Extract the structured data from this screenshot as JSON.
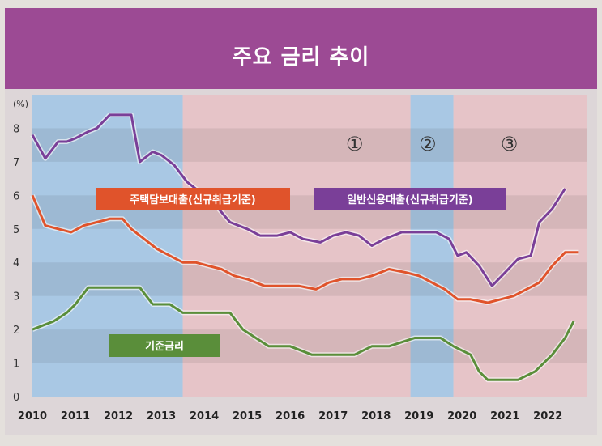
{
  "chart_data": {
    "type": "line",
    "title": "주요 금리 추이",
    "ylabel": "(%)",
    "xlabel": "",
    "ylim": [
      0,
      9
    ],
    "yticks": [
      0,
      1,
      2,
      3,
      4,
      5,
      6,
      7,
      8
    ],
    "xlim": [
      2010,
      2022.9
    ],
    "xticks": [
      "2010",
      "2011",
      "2012",
      "2013",
      "2014",
      "2015",
      "2016",
      "2017",
      "2018",
      "2019",
      "2020",
      "2021",
      "2022"
    ],
    "period_labels": [
      {
        "label": "①",
        "center": 2017.5
      },
      {
        "label": "②",
        "center": 2019.2
      },
      {
        "label": "③",
        "center": 2021.1
      }
    ],
    "shaded_periods": [
      {
        "start": 2010,
        "end": 2013.5,
        "color": "#a9c8e4"
      },
      {
        "start": 2013.5,
        "end": 2018.8,
        "color": "#e6c4c8"
      },
      {
        "start": 2018.8,
        "end": 2019.8,
        "color": "#a9c8e4"
      },
      {
        "start": 2019.8,
        "end": 2022.9,
        "color": "#e6c4c8"
      }
    ],
    "series": [
      {
        "name": "일반신용대출(신규취급기준)",
        "color": "#7a3f98",
        "points": [
          [
            2010.0,
            7.8
          ],
          [
            2010.3,
            7.1
          ],
          [
            2010.6,
            7.6
          ],
          [
            2010.8,
            7.6
          ],
          [
            2011.0,
            7.7
          ],
          [
            2011.3,
            7.9
          ],
          [
            2011.5,
            8.0
          ],
          [
            2011.8,
            8.4
          ],
          [
            2012.0,
            8.4
          ],
          [
            2012.3,
            8.4
          ],
          [
            2012.5,
            7.0
          ],
          [
            2012.8,
            7.3
          ],
          [
            2013.0,
            7.2
          ],
          [
            2013.3,
            6.9
          ],
          [
            2013.6,
            6.4
          ],
          [
            2013.9,
            6.1
          ],
          [
            2014.2,
            5.8
          ],
          [
            2014.6,
            5.2
          ],
          [
            2015.0,
            5.0
          ],
          [
            2015.3,
            4.8
          ],
          [
            2015.7,
            4.8
          ],
          [
            2016.0,
            4.9
          ],
          [
            2016.3,
            4.7
          ],
          [
            2016.7,
            4.6
          ],
          [
            2017.0,
            4.8
          ],
          [
            2017.3,
            4.9
          ],
          [
            2017.6,
            4.8
          ],
          [
            2017.9,
            4.5
          ],
          [
            2018.2,
            4.7
          ],
          [
            2018.6,
            4.9
          ],
          [
            2018.9,
            4.9
          ],
          [
            2019.1,
            4.9
          ],
          [
            2019.4,
            4.9
          ],
          [
            2019.7,
            4.7
          ],
          [
            2019.9,
            4.2
          ],
          [
            2020.1,
            4.3
          ],
          [
            2020.4,
            3.9
          ],
          [
            2020.7,
            3.3
          ],
          [
            2021.0,
            3.7
          ],
          [
            2021.3,
            4.1
          ],
          [
            2021.6,
            4.2
          ],
          [
            2021.8,
            5.2
          ],
          [
            2022.1,
            5.6
          ],
          [
            2022.4,
            6.2
          ]
        ]
      },
      {
        "name": "주택담보대출(신규취급기준)",
        "color": "#e0532b",
        "points": [
          [
            2010.0,
            6.0
          ],
          [
            2010.3,
            5.1
          ],
          [
            2010.6,
            5.0
          ],
          [
            2010.9,
            4.9
          ],
          [
            2011.2,
            5.1
          ],
          [
            2011.5,
            5.2
          ],
          [
            2011.8,
            5.3
          ],
          [
            2012.1,
            5.3
          ],
          [
            2012.3,
            5.0
          ],
          [
            2012.6,
            4.7
          ],
          [
            2012.9,
            4.4
          ],
          [
            2013.2,
            4.2
          ],
          [
            2013.5,
            4.0
          ],
          [
            2013.8,
            4.0
          ],
          [
            2014.1,
            3.9
          ],
          [
            2014.4,
            3.8
          ],
          [
            2014.7,
            3.6
          ],
          [
            2015.0,
            3.5
          ],
          [
            2015.4,
            3.3
          ],
          [
            2015.8,
            3.3
          ],
          [
            2016.2,
            3.3
          ],
          [
            2016.6,
            3.2
          ],
          [
            2016.9,
            3.4
          ],
          [
            2017.2,
            3.5
          ],
          [
            2017.6,
            3.5
          ],
          [
            2017.9,
            3.6
          ],
          [
            2018.3,
            3.8
          ],
          [
            2018.7,
            3.7
          ],
          [
            2019.0,
            3.6
          ],
          [
            2019.3,
            3.4
          ],
          [
            2019.6,
            3.2
          ],
          [
            2019.9,
            2.9
          ],
          [
            2020.2,
            2.9
          ],
          [
            2020.6,
            2.8
          ],
          [
            2020.9,
            2.9
          ],
          [
            2021.2,
            3.0
          ],
          [
            2021.5,
            3.2
          ],
          [
            2021.8,
            3.4
          ],
          [
            2022.1,
            3.9
          ],
          [
            2022.4,
            4.3
          ],
          [
            2022.7,
            4.3
          ]
        ]
      },
      {
        "name": "기준금리",
        "color": "#5a8e3a",
        "points": [
          [
            2010.0,
            2.0
          ],
          [
            2010.5,
            2.25
          ],
          [
            2010.8,
            2.5
          ],
          [
            2011.0,
            2.75
          ],
          [
            2011.3,
            3.25
          ],
          [
            2011.6,
            3.25
          ],
          [
            2012.0,
            3.25
          ],
          [
            2012.5,
            3.25
          ],
          [
            2012.8,
            2.75
          ],
          [
            2013.2,
            2.75
          ],
          [
            2013.5,
            2.5
          ],
          [
            2014.0,
            2.5
          ],
          [
            2014.6,
            2.5
          ],
          [
            2014.9,
            2.0
          ],
          [
            2015.2,
            1.75
          ],
          [
            2015.5,
            1.5
          ],
          [
            2016.0,
            1.5
          ],
          [
            2016.5,
            1.25
          ],
          [
            2017.0,
            1.25
          ],
          [
            2017.5,
            1.25
          ],
          [
            2017.9,
            1.5
          ],
          [
            2018.3,
            1.5
          ],
          [
            2018.9,
            1.75
          ],
          [
            2019.1,
            1.75
          ],
          [
            2019.5,
            1.75
          ],
          [
            2019.8,
            1.5
          ],
          [
            2020.2,
            1.25
          ],
          [
            2020.4,
            0.75
          ],
          [
            2020.6,
            0.5
          ],
          [
            2021.0,
            0.5
          ],
          [
            2021.3,
            0.5
          ],
          [
            2021.7,
            0.75
          ],
          [
            2021.9,
            1.0
          ],
          [
            2022.1,
            1.25
          ],
          [
            2022.4,
            1.75
          ],
          [
            2022.6,
            2.25
          ]
        ]
      }
    ],
    "series_labels": [
      {
        "text": "주택담보대출(신규취급기준)",
        "color": "#e0532b"
      },
      {
        "text": "일반신용대출(신규취급기준)",
        "color": "#7a3f98"
      },
      {
        "text": "기준금리",
        "color": "#5a8e3a"
      }
    ],
    "grid": "horizontal bands"
  }
}
